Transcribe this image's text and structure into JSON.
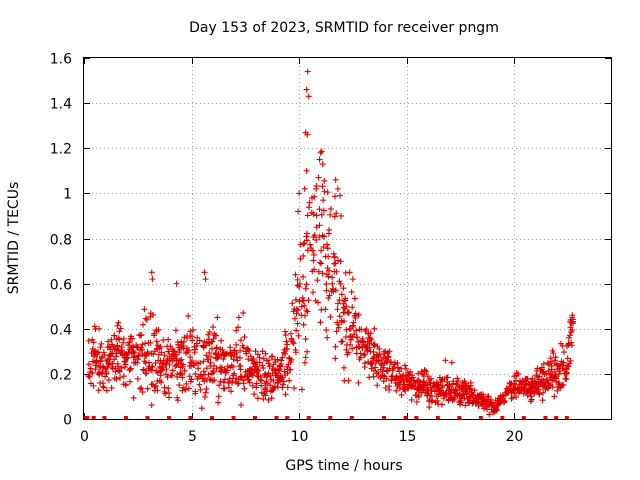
{
  "chart_data": {
    "type": "scatter",
    "title": "Day 153 of 2023, SRMTID for receiver pngm",
    "xlabel": "GPS time / hours",
    "ylabel": "SRMTID / TECUs",
    "xlim": [
      0,
      24.5
    ],
    "ylim": [
      0,
      1.6
    ],
    "xticks": [
      0,
      5,
      10,
      15,
      20
    ],
    "yticks": [
      0,
      0.2,
      0.4,
      0.6,
      0.8,
      1,
      1.2,
      1.4,
      1.6
    ],
    "ytick_labels": [
      "0",
      "0.2",
      "0.4",
      "0.6",
      "0.8",
      "1",
      "1.2",
      "1.4",
      "1.6"
    ],
    "grid": true,
    "marker": "+",
    "color": "#e00000",
    "zero_markers_x": [
      0.05,
      0.15,
      0.45,
      0.95,
      1.95,
      2.95,
      3.95,
      4.95,
      5.95,
      6.95,
      7.95,
      8.95,
      9.45,
      10.45,
      11.45,
      12.45,
      13.95,
      14.95,
      15.45,
      16.45,
      17.45,
      18.45,
      19.45,
      20.45,
      21.45,
      21.95,
      22.45
    ],
    "envelope_x": [
      0.0,
      0.4,
      0.8,
      1.2,
      1.6,
      2.0,
      2.4,
      2.8,
      3.2,
      3.6,
      4.0,
      4.4,
      4.8,
      5.2,
      5.6,
      6.0,
      6.4,
      6.8,
      7.2,
      7.6,
      8.0,
      8.4,
      8.8,
      9.2,
      9.6,
      9.9,
      10.2,
      10.5,
      10.8,
      11.1,
      11.4,
      11.7,
      12.0,
      12.4,
      12.8,
      13.2,
      13.6,
      14.0,
      14.4,
      14.8,
      15.2,
      15.6,
      16.0,
      16.4,
      16.8,
      17.2,
      17.6,
      18.0,
      18.4,
      18.8,
      19.0,
      19.2,
      19.6,
      20.0,
      20.4,
      20.8,
      21.2,
      21.6,
      22.0,
      22.4,
      22.7
    ],
    "envelope_y": [
      0.28,
      0.27,
      0.22,
      0.24,
      0.26,
      0.27,
      0.26,
      0.28,
      0.3,
      0.25,
      0.24,
      0.26,
      0.3,
      0.27,
      0.26,
      0.28,
      0.24,
      0.22,
      0.26,
      0.22,
      0.2,
      0.2,
      0.18,
      0.22,
      0.3,
      0.45,
      0.62,
      0.72,
      0.8,
      0.82,
      0.7,
      0.6,
      0.45,
      0.38,
      0.32,
      0.3,
      0.25,
      0.22,
      0.2,
      0.17,
      0.15,
      0.15,
      0.14,
      0.13,
      0.13,
      0.12,
      0.12,
      0.1,
      0.09,
      0.07,
      0.05,
      0.06,
      0.1,
      0.14,
      0.15,
      0.14,
      0.16,
      0.18,
      0.2,
      0.25,
      0.4
    ],
    "envelope_spread": [
      0.1,
      0.12,
      0.08,
      0.09,
      0.1,
      0.11,
      0.12,
      0.14,
      0.16,
      0.1,
      0.1,
      0.13,
      0.14,
      0.12,
      0.12,
      0.14,
      0.1,
      0.09,
      0.12,
      0.09,
      0.08,
      0.08,
      0.07,
      0.08,
      0.12,
      0.18,
      0.28,
      0.3,
      0.32,
      0.3,
      0.26,
      0.22,
      0.15,
      0.12,
      0.1,
      0.09,
      0.08,
      0.07,
      0.06,
      0.05,
      0.05,
      0.05,
      0.05,
      0.04,
      0.04,
      0.04,
      0.04,
      0.04,
      0.03,
      0.03,
      0.02,
      0.02,
      0.03,
      0.04,
      0.04,
      0.04,
      0.05,
      0.06,
      0.08,
      0.08,
      0.06
    ],
    "outliers": [
      {
        "x": 10.4,
        "y": 1.54
      },
      {
        "x": 10.35,
        "y": 1.46
      },
      {
        "x": 10.45,
        "y": 1.43
      },
      {
        "x": 10.3,
        "y": 1.27
      },
      {
        "x": 10.38,
        "y": 1.26
      },
      {
        "x": 11.0,
        "y": 1.18
      },
      {
        "x": 10.95,
        "y": 1.15
      },
      {
        "x": 11.1,
        "y": 1.13
      },
      {
        "x": 10.35,
        "y": 1.1
      },
      {
        "x": 10.9,
        "y": 1.07
      },
      {
        "x": 11.7,
        "y": 1.06
      },
      {
        "x": 11.8,
        "y": 1.02
      },
      {
        "x": 10.0,
        "y": 1.0
      },
      {
        "x": 9.95,
        "y": 0.92
      },
      {
        "x": 10.6,
        "y": 0.98
      },
      {
        "x": 11.9,
        "y": 0.99
      },
      {
        "x": 11.95,
        "y": 0.9
      },
      {
        "x": 3.15,
        "y": 0.65
      },
      {
        "x": 3.18,
        "y": 0.62
      },
      {
        "x": 5.6,
        "y": 0.65
      },
      {
        "x": 5.65,
        "y": 0.62
      },
      {
        "x": 4.3,
        "y": 0.6
      },
      {
        "x": 12.35,
        "y": 0.65
      },
      {
        "x": 12.5,
        "y": 0.62
      },
      {
        "x": 22.7,
        "y": 0.46
      },
      {
        "x": 22.6,
        "y": 0.43
      },
      {
        "x": 0.5,
        "y": 0.41
      },
      {
        "x": 0.7,
        "y": 0.4
      },
      {
        "x": 1.4,
        "y": 0.37
      },
      {
        "x": 13.5,
        "y": 0.4
      },
      {
        "x": 14.2,
        "y": 0.3
      },
      {
        "x": 16.8,
        "y": 0.26
      },
      {
        "x": 17.1,
        "y": 0.25
      },
      {
        "x": 21.7,
        "y": 0.27
      },
      {
        "x": 21.9,
        "y": 0.26
      },
      {
        "x": 7.2,
        "y": 0.45
      },
      {
        "x": 7.4,
        "y": 0.47
      },
      {
        "x": 6.2,
        "y": 0.45
      },
      {
        "x": 2.1,
        "y": 0.34
      },
      {
        "x": 12.3,
        "y": 0.17
      },
      {
        "x": 12.1,
        "y": 0.17
      },
      {
        "x": 8.3,
        "y": 0.3
      }
    ]
  }
}
